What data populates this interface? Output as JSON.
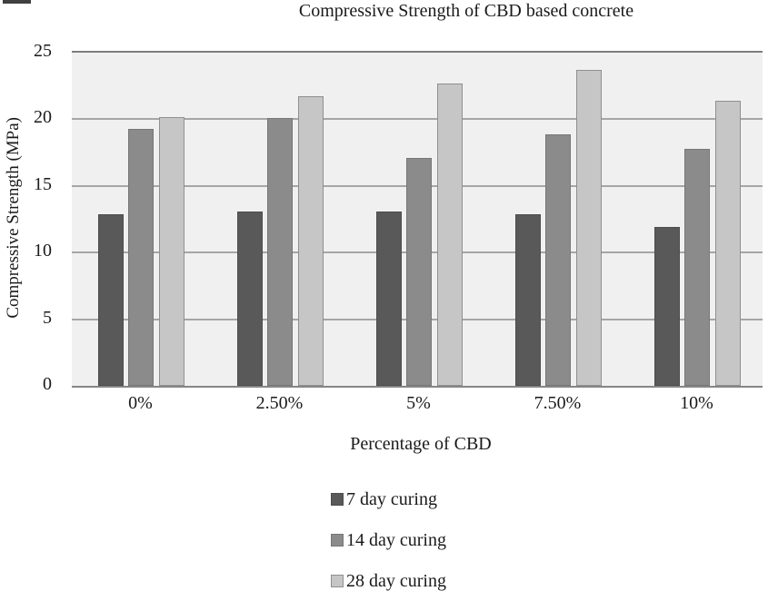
{
  "chart_data": {
    "type": "bar",
    "title": "Compressive Strength of CBD based concrete",
    "xlabel": "Percentage of CBD",
    "ylabel": "Compressive Strength (MPa)",
    "categories": [
      "0%",
      "2.50%",
      "5%",
      "7.50%",
      "10%"
    ],
    "series": [
      {
        "name": "7 day curing",
        "color": "#595959",
        "border_color": "#4c4c4c",
        "values": [
          12.9,
          13.1,
          13.1,
          12.9,
          11.9
        ]
      },
      {
        "name": "14 day curing",
        "color": "#8b8b8b",
        "border_color": "#767676",
        "values": [
          19.3,
          20.1,
          17.1,
          18.9,
          17.8
        ]
      },
      {
        "name": "28 day curing",
        "color": "#c6c6c6",
        "border_color": "#8f8f8f",
        "values": [
          20.2,
          21.7,
          22.7,
          23.7,
          21.4
        ]
      }
    ],
    "ylim": [
      0,
      25
    ],
    "yticks": [
      0,
      5,
      10,
      15,
      20,
      25
    ],
    "grid": true,
    "gridline_color": "#a6a6a6",
    "plot_background": "#f0f0f0",
    "legend_position": "bottom",
    "legend_entries": [
      "7 day curing",
      "14 day curing",
      "28 day curing"
    ]
  }
}
